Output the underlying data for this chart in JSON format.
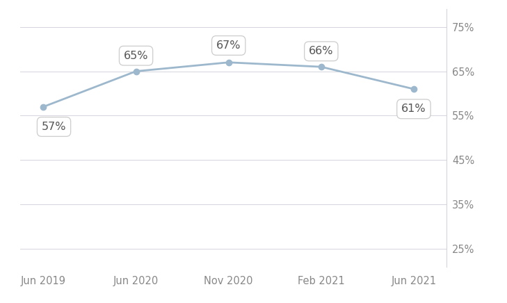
{
  "x_labels": [
    "Jun 2019",
    "Jun 2020",
    "Nov 2020",
    "Feb 2021",
    "Jun 2021"
  ],
  "x_values": [
    0,
    1,
    2,
    3,
    4
  ],
  "y_values": [
    57,
    65,
    67,
    66,
    61
  ],
  "y_ticks": [
    25,
    35,
    45,
    55,
    65,
    75
  ],
  "ylim": [
    21,
    79
  ],
  "xlim": [
    -0.25,
    4.35
  ],
  "line_color": "#9db8cc",
  "marker_color": "#9db8cc",
  "marker_size": 6,
  "line_width": 2.0,
  "label_fontsize": 11.5,
  "tick_fontsize": 10.5,
  "background_color": "#ffffff",
  "grid_color": "#d4d4dc",
  "annotation_labels": [
    "57%",
    "65%",
    "67%",
    "66%",
    "61%"
  ],
  "annotation_x_offsets": [
    -0.02,
    0.0,
    0.0,
    0.0,
    0.0
  ],
  "annotation_y_offsets": [
    -4.5,
    3.5,
    3.8,
    3.5,
    -4.5
  ],
  "annotation_ha": [
    "left",
    "center",
    "center",
    "center",
    "center"
  ]
}
